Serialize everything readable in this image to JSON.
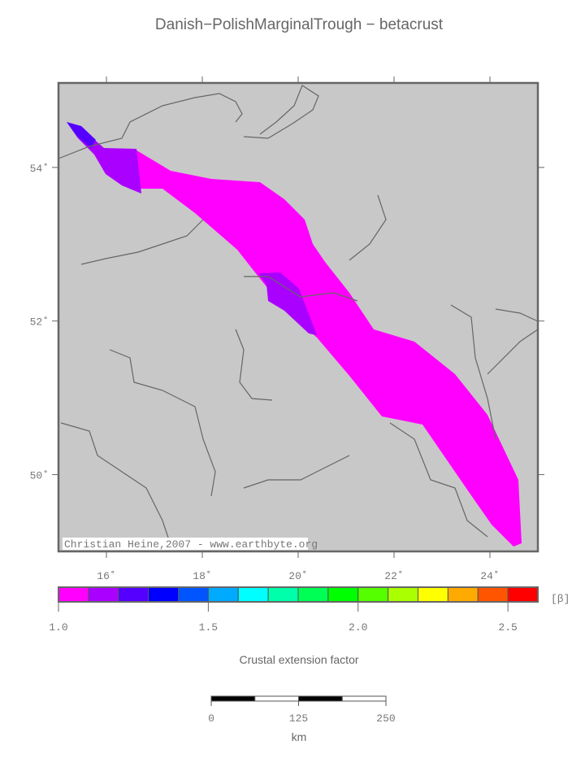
{
  "title": "Danish−PolishMarginalTrough − betacrust",
  "map": {
    "xlim": [
      15,
      25
    ],
    "ylim": [
      49,
      55.1
    ],
    "xticks": [
      {
        "value": 16,
        "label": "16˚"
      },
      {
        "value": 18,
        "label": "18˚"
      },
      {
        "value": 20,
        "label": "20˚"
      },
      {
        "value": 22,
        "label": "22˚"
      },
      {
        "value": 24,
        "label": "24˚"
      }
    ],
    "yticks": [
      {
        "value": 50,
        "label": "50˚"
      },
      {
        "value": 52,
        "label": "52˚"
      },
      {
        "value": 54,
        "label": "54˚"
      }
    ],
    "credit": "Christian Heine,2007 - www.earthbyte.org"
  },
  "colorbar": {
    "lim": [
      1.0,
      2.6
    ],
    "colors": [
      "#ff00ff",
      "#aa00ff",
      "#5500ff",
      "#0000ff",
      "#0055ff",
      "#00aaff",
      "#00ffff",
      "#00ffaa",
      "#00ff55",
      "#00ff00",
      "#55ff00",
      "#aaff00",
      "#ffff00",
      "#ffaa00",
      "#ff5500",
      "#ff0000"
    ],
    "ticks": [
      {
        "value": 1.0,
        "label": "1.0"
      },
      {
        "value": 1.5,
        "label": "1.5"
      },
      {
        "value": 2.0,
        "label": "2.0"
      },
      {
        "value": 2.5,
        "label": "2.5"
      }
    ],
    "unit": "[β]",
    "label": "Crustal extension factor"
  },
  "scalebar": {
    "ticks": [
      0,
      125,
      250
    ],
    "unit": "km"
  }
}
